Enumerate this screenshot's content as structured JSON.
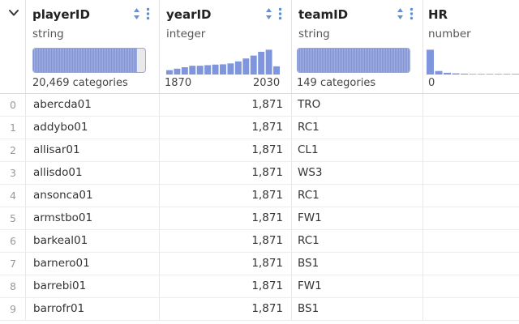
{
  "columns": [
    {
      "name": "playerID",
      "type": "string",
      "summary_kind": "categories",
      "summary": "20,469 categories",
      "fill_fraction": 0.93
    },
    {
      "name": "yearID",
      "type": "integer",
      "summary_kind": "histogram",
      "min_label": "1870",
      "max_label": "2030",
      "histogram": [
        0.15,
        0.2,
        0.25,
        0.3,
        0.3,
        0.32,
        0.34,
        0.35,
        0.38,
        0.45,
        0.55,
        0.65,
        0.78,
        0.85,
        0.28
      ]
    },
    {
      "name": "teamID",
      "type": "string",
      "summary_kind": "categories",
      "summary": "149 categories",
      "fill_fraction": 1.0
    },
    {
      "name": "HR",
      "type": "number",
      "summary_kind": "histogram",
      "min_label": "0",
      "histogram": [
        0.85,
        0.12,
        0.06,
        0.04,
        0.03,
        0.02,
        0.02,
        0.02,
        0.02,
        0.02,
        0.02
      ]
    }
  ],
  "rows": [
    {
      "idx": "0",
      "playerID": "abercda01",
      "yearID": "1,871",
      "teamID": "TRO",
      "HR": ""
    },
    {
      "idx": "1",
      "playerID": "addybo01",
      "yearID": "1,871",
      "teamID": "RC1",
      "HR": ""
    },
    {
      "idx": "2",
      "playerID": "allisar01",
      "yearID": "1,871",
      "teamID": "CL1",
      "HR": ""
    },
    {
      "idx": "3",
      "playerID": "allisdo01",
      "yearID": "1,871",
      "teamID": "WS3",
      "HR": ""
    },
    {
      "idx": "4",
      "playerID": "ansonca01",
      "yearID": "1,871",
      "teamID": "RC1",
      "HR": ""
    },
    {
      "idx": "5",
      "playerID": "armstbo01",
      "yearID": "1,871",
      "teamID": "FW1",
      "HR": ""
    },
    {
      "idx": "6",
      "playerID": "barkeal01",
      "yearID": "1,871",
      "teamID": "RC1",
      "HR": ""
    },
    {
      "idx": "7",
      "playerID": "barnero01",
      "yearID": "1,871",
      "teamID": "BS1",
      "HR": ""
    },
    {
      "idx": "8",
      "playerID": "barrebi01",
      "yearID": "1,871",
      "teamID": "FW1",
      "HR": ""
    },
    {
      "idx": "9",
      "playerID": "barrofr01",
      "yearID": "1,871",
      "teamID": "BS1",
      "HR": ""
    }
  ],
  "colors": {
    "accent": "#7f95dc",
    "icon_blue": "#5b8fd6",
    "bar_border": "#9aa8e0"
  }
}
